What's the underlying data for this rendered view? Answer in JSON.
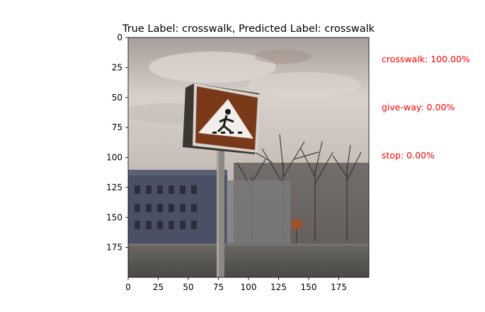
{
  "chart_data": {
    "type": "image",
    "title": "True Label: crosswalk, Predicted Label: crosswalk",
    "xlim": [
      0,
      200
    ],
    "ylim": [
      200,
      0
    ],
    "xticks": [
      0,
      25,
      50,
      75,
      100,
      125,
      150,
      175
    ],
    "yticks": [
      0,
      25,
      50,
      75,
      100,
      125,
      150,
      175
    ],
    "image_content": "photo of a pedestrian crossing road sign on a pole in front of a building and bare trees under a cloudy sky",
    "predictions": [
      {
        "label": "crosswalk: 100.00%",
        "color": "#ff0000"
      },
      {
        "label": "give-way: 0.00%",
        "color": "#ff0000"
      },
      {
        "label": "stop: 0.00%",
        "color": "#ff0000"
      }
    ]
  }
}
